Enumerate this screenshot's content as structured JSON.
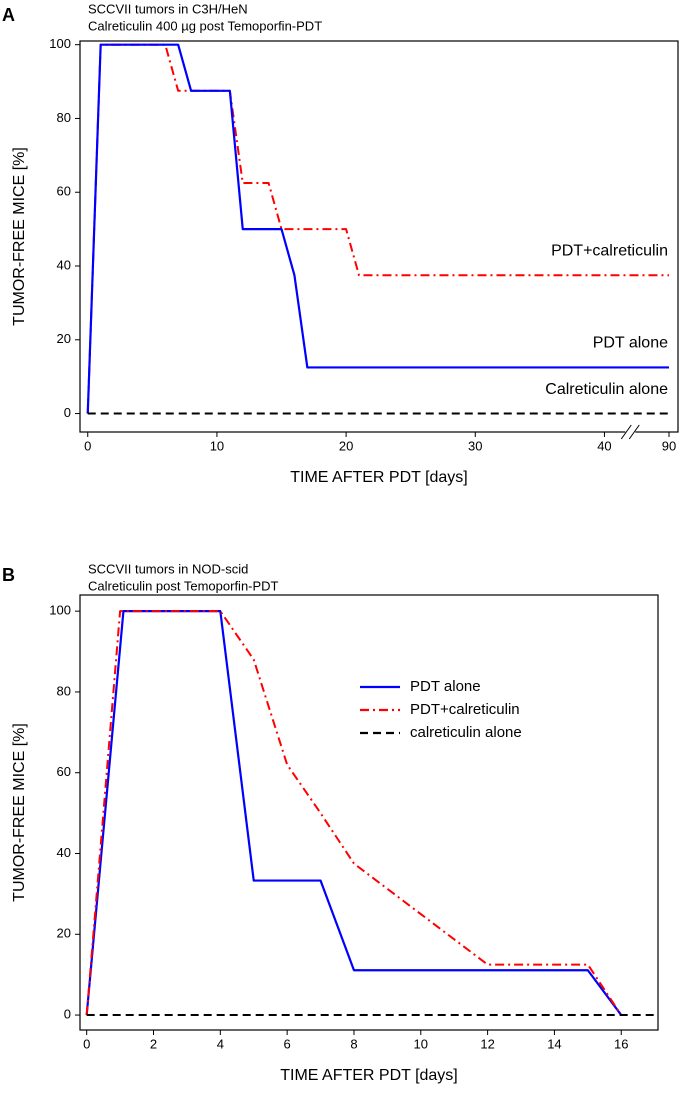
{
  "chart_data": [
    {
      "type": "line",
      "panel_label": "A",
      "title": "SCCVII tumors in C3H/HeN",
      "subtitle": "Calreticulin 400 µg post Temoporfin-PDT",
      "xlabel": "TIME AFTER PDT [days]",
      "ylabel": "TUMOR-FREE MICE [%]",
      "xlim": [
        -0.6,
        97
      ],
      "xticks": [
        0,
        10,
        20,
        30,
        40,
        90
      ],
      "axis_break": true,
      "ylim": [
        -5,
        101
      ],
      "yticks": [
        0,
        20,
        40,
        60,
        80,
        100
      ],
      "legend": "inline",
      "series": [
        {
          "name": "PDT+calreticulin",
          "color": "#ff0000",
          "dash": "dashdot",
          "x": [
            0,
            1,
            6,
            7,
            11,
            12,
            14,
            15,
            20,
            21,
            90
          ],
          "values": [
            0,
            100,
            100,
            87.5,
            87.5,
            62.5,
            62.5,
            50,
            50,
            37.5,
            37.5
          ]
        },
        {
          "name": "PDT alone",
          "color": "#0000ff",
          "dash": "solid",
          "x": [
            0,
            1,
            7,
            8,
            11,
            12,
            15,
            16,
            17,
            90
          ],
          "values": [
            0,
            100,
            100,
            87.5,
            87.5,
            50,
            50,
            37.5,
            12.5,
            12.5
          ]
        },
        {
          "name": "Calreticulin alone",
          "color": "#000000",
          "dash": "dashed",
          "x": [
            0,
            90
          ],
          "values": [
            0,
            0
          ]
        }
      ]
    },
    {
      "type": "line",
      "panel_label": "B",
      "title": "SCCVII tumors in NOD-scid",
      "subtitle": "Calreticulin post Temoporfin-PDT",
      "xlabel": "TIME AFTER PDT [days]",
      "ylabel": "TUMOR-FREE MICE [%]",
      "xlim": [
        -0.2,
        17.1
      ],
      "xticks": [
        0,
        2,
        4,
        6,
        8,
        10,
        12,
        14,
        16
      ],
      "ylim": [
        -3.7,
        104
      ],
      "yticks": [
        0,
        20,
        40,
        60,
        80,
        100
      ],
      "legend": "right",
      "series": [
        {
          "name": "PDT alone",
          "color": "#0000ff",
          "dash": "solid",
          "x": [
            0,
            1.1,
            4,
            5,
            7,
            8,
            15,
            16
          ],
          "values": [
            0,
            100,
            100,
            33.3,
            33.3,
            11.1,
            11.1,
            0
          ]
        },
        {
          "name": "PDT+calreticulin",
          "color": "#ff0000",
          "dash": "dashdot",
          "x": [
            0,
            1,
            4,
            4.5,
            5,
            5.5,
            6,
            7,
            8,
            10,
            12,
            15,
            16
          ],
          "values": [
            0,
            100,
            100,
            94,
            88,
            75,
            62,
            50,
            37.5,
            25,
            12.5,
            12.5,
            0
          ]
        },
        {
          "name": "calreticulin alone",
          "color": "#000000",
          "dash": "dashed",
          "x": [
            0,
            17
          ],
          "values": [
            0,
            0
          ]
        }
      ]
    }
  ]
}
